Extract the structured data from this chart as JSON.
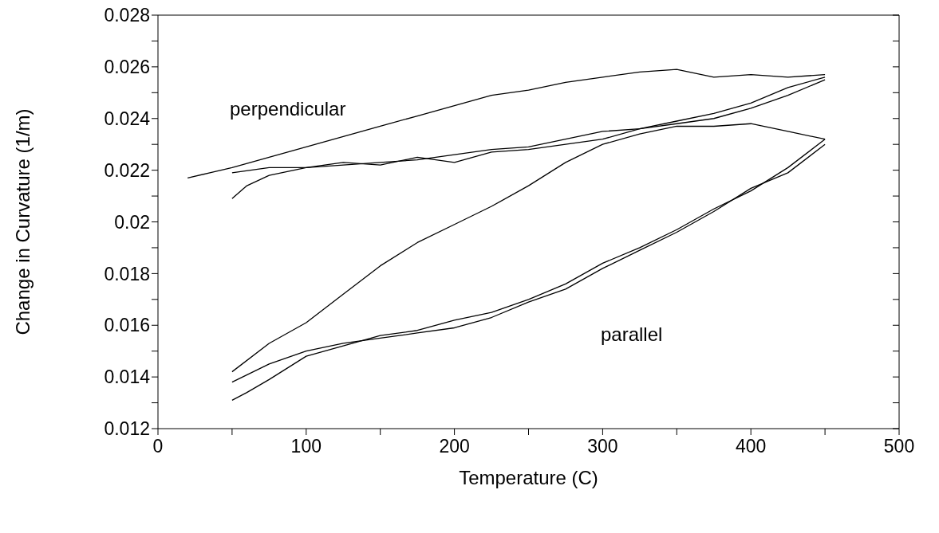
{
  "chart_data": {
    "type": "line",
    "xlabel": "Temperature (C)",
    "ylabel": "Change in Curvature (1/m)",
    "xlim": [
      0,
      500
    ],
    "xticks": [
      0,
      {
        "value": 50,
        "label": null
      },
      100,
      {
        "value": 150,
        "label": null
      },
      200,
      {
        "value": 250,
        "label": null
      },
      300,
      {
        "value": 350,
        "label": null
      },
      400,
      {
        "value": 450,
        "label": null
      },
      500
    ],
    "ylim": [
      0.012,
      0.028
    ],
    "yticks": [
      0.012,
      {
        "value": 0.013,
        "label": null
      },
      0.014,
      {
        "value": 0.015,
        "label": null
      },
      0.016,
      {
        "value": 0.017,
        "label": null
      },
      0.018,
      {
        "value": 0.019,
        "label": null
      },
      0.02,
      {
        "value": 0.021,
        "label": null
      },
      0.022,
      {
        "value": 0.023,
        "label": null
      },
      0.024,
      {
        "value": 0.025,
        "label": null
      },
      0.026,
      {
        "value": 0.027,
        "label": null
      },
      0.028
    ],
    "grid": false,
    "marker": "none",
    "line_style": "solid",
    "annotations": [
      "perpendicular",
      "parallel"
    ],
    "series": [
      {
        "color": "#000000",
        "x": [
          50,
          75,
          100,
          125,
          150,
          175,
          200,
          225,
          250,
          275,
          300,
          325,
          350,
          375,
          400,
          425,
          450
        ],
        "values": [
          0.0219,
          0.0221,
          0.0221,
          0.0223,
          0.0222,
          0.0225,
          0.0223,
          0.0227,
          0.0228,
          0.023,
          0.0232,
          0.0236,
          0.0238,
          0.024,
          0.0244,
          0.0249,
          0.0255
        ]
      },
      {
        "color": "#000000",
        "x": [
          50,
          60,
          75,
          100,
          125,
          150,
          175,
          200,
          225,
          250,
          275,
          300,
          325,
          350,
          375,
          400,
          425,
          450
        ],
        "values": [
          0.0209,
          0.0214,
          0.0218,
          0.0221,
          0.0222,
          0.0223,
          0.0224,
          0.0226,
          0.0228,
          0.0229,
          0.0232,
          0.0235,
          0.0236,
          0.0239,
          0.0242,
          0.0246,
          0.0252,
          0.0256
        ]
      },
      {
        "color": "#000000",
        "x": [
          450,
          425,
          400,
          375,
          350,
          325,
          300,
          275,
          250,
          225,
          200,
          175,
          150,
          125,
          100,
          75,
          50,
          35,
          20
        ],
        "values": [
          0.0257,
          0.0256,
          0.0257,
          0.0256,
          0.0259,
          0.0258,
          0.0256,
          0.0254,
          0.0251,
          0.0249,
          0.0245,
          0.0241,
          0.0237,
          0.0233,
          0.0229,
          0.0225,
          0.0221,
          0.0219,
          0.0217
        ]
      },
      {
        "color": "#000000",
        "x": [
          50,
          75,
          100,
          125,
          150,
          175,
          200,
          225,
          250,
          275,
          300,
          325,
          350,
          375,
          400,
          425,
          450
        ],
        "values": [
          0.0138,
          0.0145,
          0.015,
          0.0153,
          0.0155,
          0.0157,
          0.0159,
          0.0163,
          0.0169,
          0.0174,
          0.0182,
          0.0189,
          0.0196,
          0.0204,
          0.0213,
          0.0219,
          0.023
        ]
      },
      {
        "color": "#000000",
        "x": [
          50,
          60,
          75,
          100,
          125,
          150,
          175,
          200,
          225,
          250,
          275,
          300,
          325,
          350,
          375,
          400,
          425,
          450
        ],
        "values": [
          0.0131,
          0.0134,
          0.0139,
          0.0148,
          0.0152,
          0.0156,
          0.0158,
          0.0162,
          0.0165,
          0.017,
          0.0176,
          0.0184,
          0.019,
          0.0197,
          0.0205,
          0.0212,
          0.0221,
          0.0232
        ]
      },
      {
        "color": "#000000",
        "x": [
          450,
          425,
          400,
          375,
          350,
          325,
          300,
          275,
          250,
          225,
          200,
          175,
          150,
          125,
          100,
          75,
          50
        ],
        "values": [
          0.0232,
          0.0235,
          0.0238,
          0.0237,
          0.0237,
          0.0234,
          0.023,
          0.0223,
          0.0214,
          0.0206,
          0.0199,
          0.0192,
          0.0183,
          0.0172,
          0.0161,
          0.0153,
          0.0142
        ]
      }
    ]
  }
}
